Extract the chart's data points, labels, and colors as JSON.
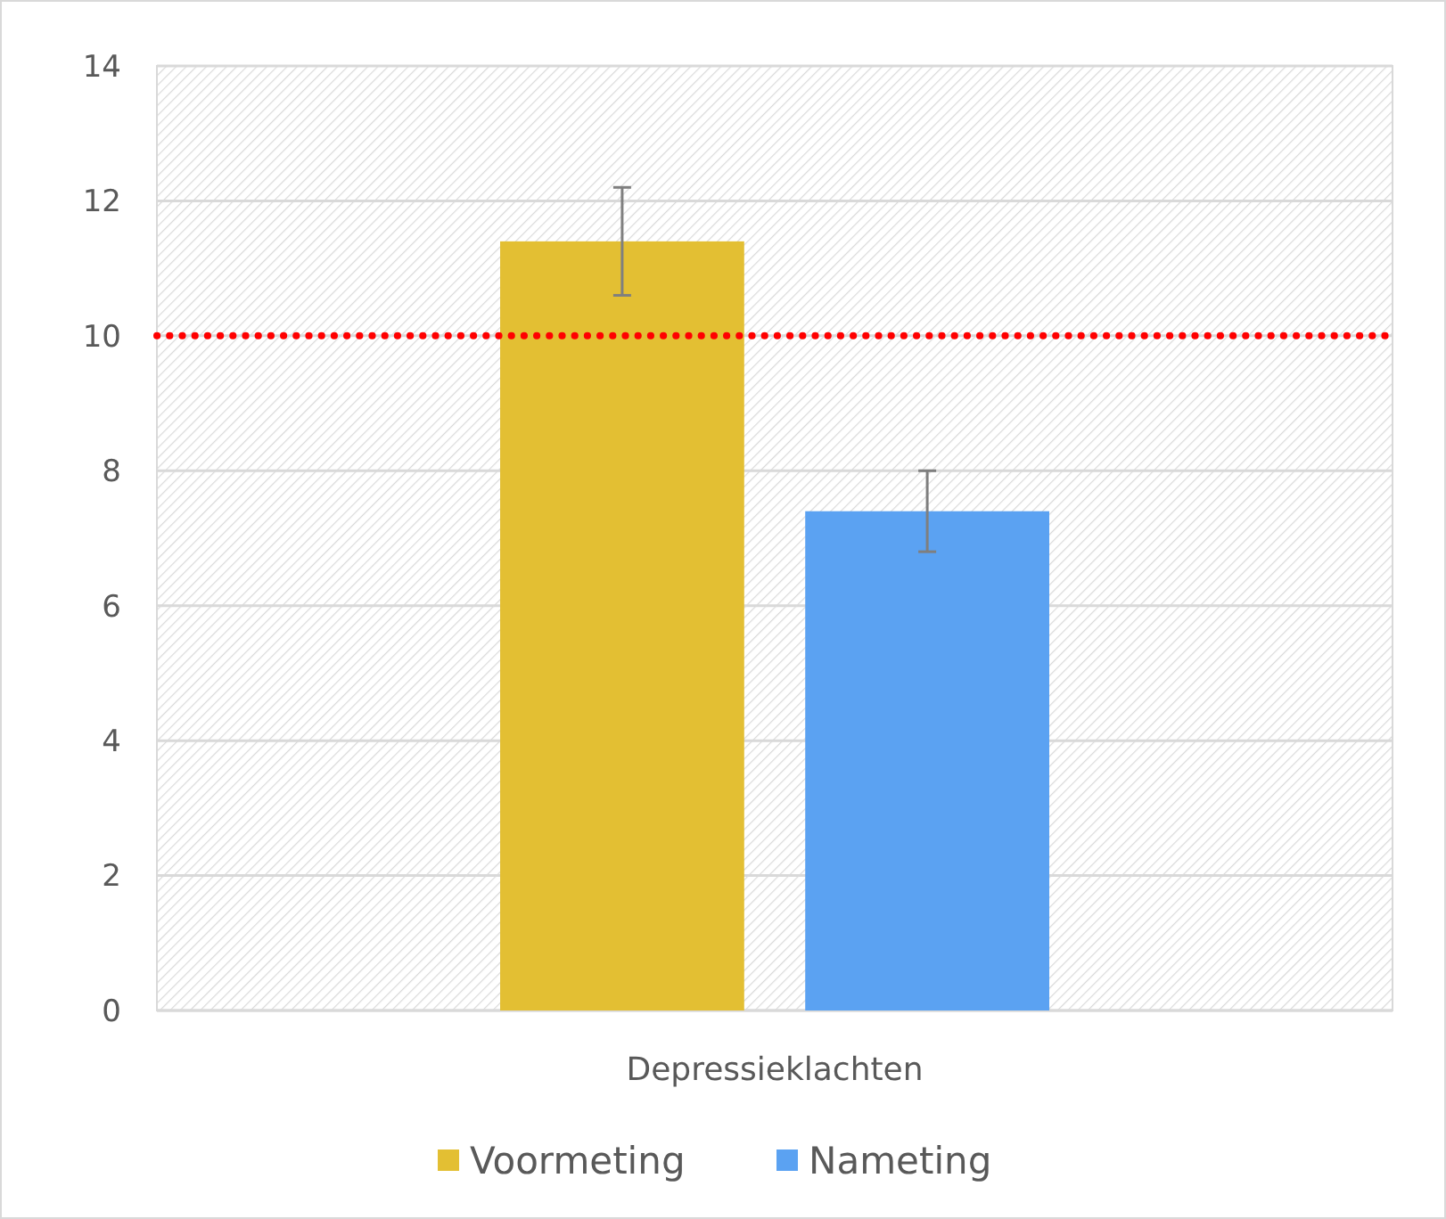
{
  "chart_data": {
    "type": "bar",
    "categories": [
      "Depressieklachten"
    ],
    "series": [
      {
        "name": "Voormeting",
        "color": "#e3bf33",
        "values": [
          11.4
        ],
        "errors": [
          0.8
        ]
      },
      {
        "name": "Nameting",
        "color": "#5ba2f2",
        "values": [
          7.4
        ],
        "errors": [
          0.6
        ]
      }
    ],
    "ylim": [
      0,
      14
    ],
    "yticks": [
      0,
      2,
      4,
      6,
      8,
      10,
      12,
      14
    ],
    "grid": "y",
    "legend": "bottom",
    "ref_lines": [
      {
        "axis": "y",
        "value": 10,
        "color": "#ff0000",
        "line_style": "dotted"
      }
    ]
  }
}
